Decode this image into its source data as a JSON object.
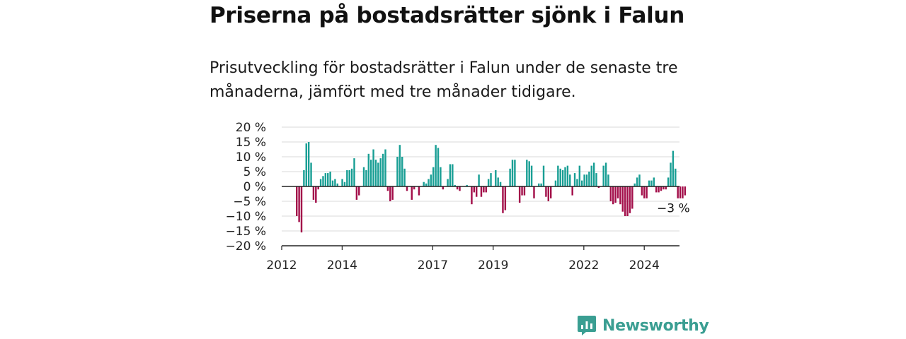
{
  "title": "Priserna på bostadsrätter sjönk i Falun",
  "subtitle": "Prisutveckling för bostadsrätter i Falun under de senaste tre månaderna, jämfört med tre månader tidigare.",
  "brand": {
    "name": "Newsworthy",
    "color": "#3a9e92",
    "icon": "bar-chart-speech-bubble-icon"
  },
  "chart_data": {
    "type": "bar",
    "x_start": "2012-01",
    "x_end": "2025-03",
    "xticks": [
      {
        "x": "2012-01",
        "label": "2012"
      },
      {
        "x": "2014-01",
        "label": "2014"
      },
      {
        "x": "2017-01",
        "label": "2017"
      },
      {
        "x": "2019-01",
        "label": "2019"
      },
      {
        "x": "2022-01",
        "label": "2022"
      },
      {
        "x": "2024-01",
        "label": "2024"
      }
    ],
    "yticks": [
      {
        "value": 20,
        "label": "20 %"
      },
      {
        "value": 15,
        "label": "15 %"
      },
      {
        "value": 10,
        "label": "10 %"
      },
      {
        "value": 5,
        "label": "5 %"
      },
      {
        "value": 0,
        "label": "0 %"
      },
      {
        "value": -5,
        "label": "−5 %"
      },
      {
        "value": -10,
        "label": "−10 %"
      },
      {
        "value": -15,
        "label": "−15 %"
      },
      {
        "value": -20,
        "label": "−20 %"
      }
    ],
    "ylim": [
      -20,
      20
    ],
    "grid": true,
    "positive_color": "#1a9f95",
    "negative_color": "#a30f4a",
    "values": [
      -10,
      -12,
      -15.5,
      5.5,
      14.5,
      15,
      8,
      -4.5,
      -5.5,
      -1,
      2.5,
      3.5,
      4.5,
      4.5,
      5,
      2,
      2.5,
      1,
      0,
      2.5,
      1.5,
      5.5,
      5.5,
      6,
      9.5,
      -4.5,
      -3,
      0,
      6.5,
      5.5,
      11,
      9,
      12.5,
      9,
      8,
      9.5,
      11,
      12.5,
      -1.5,
      -5,
      -4.5,
      0,
      10,
      14,
      10,
      6,
      -1.5,
      0,
      -4.5,
      -1,
      0,
      -3,
      0,
      1.5,
      1,
      2.5,
      4,
      6.5,
      14,
      13,
      6.5,
      -1,
      0,
      2.5,
      7.5,
      7.5,
      0.5,
      -1,
      -1.5,
      0,
      0,
      0.5,
      0,
      -6,
      -2,
      -3.5,
      4,
      -3.5,
      -2,
      -2,
      2.5,
      4.5,
      0,
      5.5,
      3,
      1.5,
      -9,
      -8,
      0,
      6,
      9,
      9,
      0,
      -5.5,
      -3,
      -3,
      9,
      8.5,
      7,
      -4,
      0,
      1,
      1,
      7,
      -3.5,
      -5,
      -4,
      0,
      2,
      7,
      6,
      5.5,
      6.5,
      7,
      4,
      -3,
      4.5,
      2.5,
      7,
      2,
      4,
      4,
      5,
      7,
      8,
      4.5,
      -0.5,
      0,
      7,
      8,
      4,
      -5,
      -6,
      -5.5,
      -4,
      -6,
      -8.5,
      -10,
      -10,
      -9,
      -7.5,
      1,
      3,
      4,
      -3,
      -4,
      -4,
      2,
      2,
      3,
      -2,
      -2,
      -1.5,
      -1,
      -1,
      3,
      8,
      12,
      6,
      -4,
      -4,
      -4,
      -3
    ],
    "annotation": {
      "label": "−3 %"
    }
  }
}
